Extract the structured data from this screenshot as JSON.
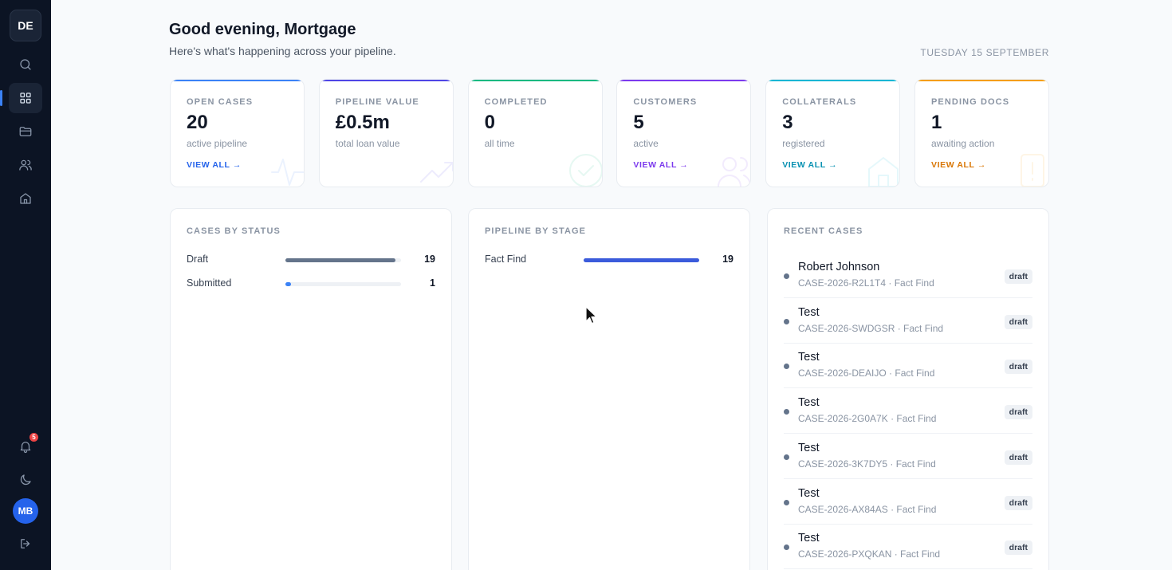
{
  "sidebar": {
    "brand": "DE",
    "notifications_count": "5",
    "user_initials": "MB"
  },
  "header": {
    "greeting": "Good evening, Mortgage",
    "subtitle": "Here's what's happening across your pipeline.",
    "date": "TUESDAY 15 SEPTEMBER"
  },
  "stats": [
    {
      "label": "OPEN CASES",
      "value": "20",
      "sub": "active pipeline",
      "link": "VIEW ALL →",
      "color": "#3b82f6",
      "link_color": "#2563eb",
      "icon": "activity-icon"
    },
    {
      "label": "PIPELINE VALUE",
      "value": "£0.5m",
      "sub": "total loan value",
      "link": "",
      "color": "#4f46e5",
      "link_color": "#4f46e5",
      "icon": "trending-up-icon"
    },
    {
      "label": "COMPLETED",
      "value": "0",
      "sub": "all time",
      "link": "",
      "color": "#10b981",
      "link_color": "#10b981",
      "icon": "check-circle-icon"
    },
    {
      "label": "CUSTOMERS",
      "value": "5",
      "sub": "active",
      "link": "VIEW ALL →",
      "color": "#7c3aed",
      "link_color": "#7c3aed",
      "icon": "users-icon"
    },
    {
      "label": "COLLATERALS",
      "value": "3",
      "sub": "registered",
      "link": "VIEW ALL →",
      "color": "#06b6d4",
      "link_color": "#0891b2",
      "icon": "home-icon"
    },
    {
      "label": "PENDING DOCS",
      "value": "1",
      "sub": "awaiting action",
      "link": "VIEW ALL →",
      "color": "#f59e0b",
      "link_color": "#d97706",
      "icon": "alert-icon"
    }
  ],
  "cases_by_status": {
    "title": "CASES BY STATUS",
    "rows": [
      {
        "name": "Draft",
        "count": "19",
        "fraction": 0.95,
        "color": "#64748b"
      },
      {
        "name": "Submitted",
        "count": "1",
        "fraction": 0.05,
        "color": "#3b82f6"
      }
    ]
  },
  "pipeline_by_stage": {
    "title": "PIPELINE BY STAGE",
    "rows": [
      {
        "name": "Fact Find",
        "count": "19",
        "fraction": 1.0,
        "color": "#3b5bdb"
      }
    ]
  },
  "recent_cases": {
    "title": "RECENT CASES",
    "items": [
      {
        "name": "Robert Johnson",
        "meta": "CASE-2026-R2L1T4 · Fact Find",
        "status": "draft"
      },
      {
        "name": "Test",
        "meta": "CASE-2026-SWDGSR · Fact Find",
        "status": "draft"
      },
      {
        "name": "Test",
        "meta": "CASE-2026-DEAIJO · Fact Find",
        "status": "draft"
      },
      {
        "name": "Test",
        "meta": "CASE-2026-2G0A7K · Fact Find",
        "status": "draft"
      },
      {
        "name": "Test",
        "meta": "CASE-2026-3K7DY5 · Fact Find",
        "status": "draft"
      },
      {
        "name": "Test",
        "meta": "CASE-2026-AX84AS · Fact Find",
        "status": "draft"
      },
      {
        "name": "Test",
        "meta": "CASE-2026-PXQKAN · Fact Find",
        "status": "draft"
      }
    ]
  }
}
